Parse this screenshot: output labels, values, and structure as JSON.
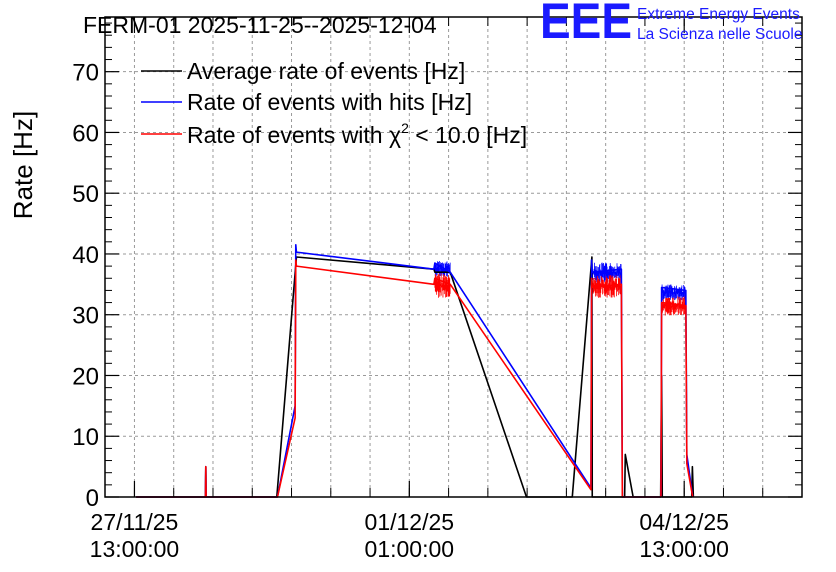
{
  "chart_data": {
    "type": "line",
    "title": "FERM-01 2025-11-25--2025-12-04",
    "ylabel": "Rate [Hz]",
    "xlabel": "",
    "ylim": [
      0,
      79
    ],
    "y_ticks": [
      0,
      10,
      20,
      30,
      40,
      50,
      60,
      70
    ],
    "grid": true,
    "legend_position": "top-left",
    "x_unit": "hours since 27/11/25 13:00:00",
    "xlim": [
      -9,
      204
    ],
    "x_ticks": [
      {
        "x": 0,
        "date": "27/11/25",
        "time": "13:00:00"
      },
      {
        "x": 84,
        "date": "01/12/25",
        "time": "01:00:00"
      },
      {
        "x": 168,
        "date": "04/12/25",
        "time": "13:00:00"
      }
    ],
    "minor_x_ticks": [
      0,
      12,
      24,
      36,
      48,
      60,
      72,
      84,
      96,
      108,
      120,
      132,
      144,
      156,
      168,
      180,
      192
    ],
    "series": [
      {
        "name": "Average rate of events [Hz]",
        "color": "#000000",
        "points": [
          [
            0.5,
            0
          ],
          [
            21.7,
            0
          ],
          [
            21.8,
            5
          ],
          [
            21.9,
            0
          ],
          [
            43.5,
            0
          ],
          [
            49.5,
            39.5
          ],
          [
            91.5,
            37.5
          ],
          [
            91.8,
            37
          ],
          [
            96.5,
            37
          ],
          [
            119.8,
            0
          ],
          [
            133.8,
            0
          ],
          [
            139.8,
            39.5
          ],
          [
            139.9,
            0
          ],
          [
            149.8,
            0
          ],
          [
            150,
            7
          ],
          [
            152.4,
            0
          ],
          [
            160.8,
            0
          ],
          [
            161.1,
            20
          ],
          [
            161.3,
            0
          ],
          [
            170.3,
            0
          ],
          [
            170.5,
            5
          ],
          [
            170.8,
            0
          ]
        ]
      },
      {
        "name": "Rate of events with hits [Hz]",
        "color": "#0000ff",
        "points": [
          [
            0.5,
            0
          ],
          [
            21.7,
            0
          ],
          [
            21.8,
            5
          ],
          [
            21.9,
            0
          ],
          [
            43.7,
            0
          ],
          [
            49.1,
            15
          ],
          [
            49.3,
            41.5
          ],
          [
            49.5,
            40.3
          ],
          [
            91.5,
            37.5
          ],
          [
            91.8,
            38.5
          ],
          [
            96.5,
            37
          ],
          [
            139.5,
            1.5
          ],
          [
            139.7,
            39
          ],
          [
            139.9,
            37
          ],
          [
            148.8,
            37.5
          ],
          [
            149.1,
            0
          ],
          [
            160.9,
            0
          ],
          [
            161.1,
            34.5
          ],
          [
            168.5,
            34
          ],
          [
            168.8,
            7
          ],
          [
            170.6,
            0
          ]
        ]
      },
      {
        "name": "Rate of events with χ² < 10.0 [Hz]",
        "color": "#ff0000",
        "points": [
          [
            0.5,
            0
          ],
          [
            21.7,
            0
          ],
          [
            21.8,
            5
          ],
          [
            21.9,
            0
          ],
          [
            43.7,
            0
          ],
          [
            49.1,
            13
          ],
          [
            49.3,
            39
          ],
          [
            49.5,
            38
          ],
          [
            91.5,
            35
          ],
          [
            91.8,
            36
          ],
          [
            96.5,
            35
          ],
          [
            139.5,
            1.2
          ],
          [
            139.7,
            36
          ],
          [
            139.9,
            34.5
          ],
          [
            148.8,
            35
          ],
          [
            149.1,
            0
          ],
          [
            160.9,
            0
          ],
          [
            161.1,
            32
          ],
          [
            168.5,
            31.5
          ],
          [
            168.8,
            5.5
          ],
          [
            170.6,
            0
          ]
        ]
      }
    ],
    "noise_bands": [
      {
        "series": 1,
        "from": 91.8,
        "to": 96.5,
        "lo": 36.2,
        "hi": 38.9
      },
      {
        "series": 1,
        "from": 139.9,
        "to": 148.8,
        "lo": 35.3,
        "hi": 38.6
      },
      {
        "series": 1,
        "from": 161.1,
        "to": 168.5,
        "lo": 32.3,
        "hi": 35.0
      },
      {
        "series": 2,
        "from": 91.8,
        "to": 96.5,
        "lo": 32.8,
        "hi": 36.8
      },
      {
        "series": 2,
        "from": 139.9,
        "to": 148.8,
        "lo": 32.8,
        "hi": 36.5
      },
      {
        "series": 2,
        "from": 161.1,
        "to": 168.5,
        "lo": 29.8,
        "hi": 33.0
      }
    ]
  },
  "legend": {
    "avg": "Average rate of events [Hz]",
    "hits": "Rate of events with hits [Hz]",
    "chi_prefix": "Rate of events with ",
    "chi_symbol": "χ",
    "chi_sup": "2",
    "chi_suffix": " < 10.0 [Hz]"
  },
  "logo": {
    "mark": "EEE",
    "line1": "Extreme Energy Events",
    "line2": "La Scienza nelle Scuole",
    "color": "#1a1aff"
  }
}
